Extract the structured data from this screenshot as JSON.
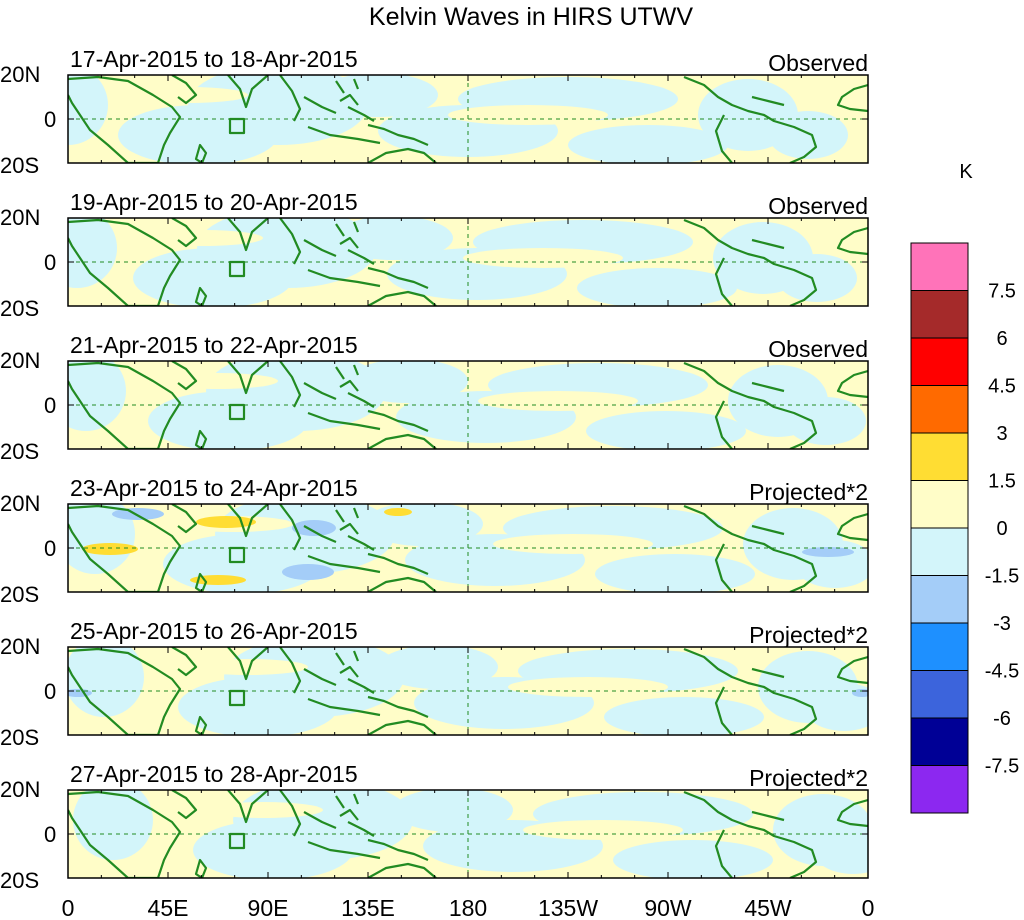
{
  "chart_data": {
    "type": "heatmap",
    "title": "Kelvin Waves in HIRS UTWV",
    "units": "K",
    "x_tick_labels": [
      "0",
      "45E",
      "90E",
      "135E",
      "180",
      "135W",
      "90W",
      "45W",
      "0"
    ],
    "y_tick_labels": [
      "20N",
      "0",
      "20S"
    ],
    "x_range_deg_east": [
      0,
      360
    ],
    "y_range_deg": [
      -20,
      20
    ],
    "reference_lines": [
      "equator",
      "180"
    ],
    "panels": [
      {
        "period": "17-Apr-2015 to 18-Apr-2015",
        "tag": "Observed",
        "pattern_shift": 0
      },
      {
        "period": "19-Apr-2015 to 20-Apr-2015",
        "tag": "Observed",
        "pattern_shift": 15
      },
      {
        "period": "21-Apr-2015 to 22-Apr-2015",
        "tag": "Observed",
        "pattern_shift": 30
      },
      {
        "period": "23-Apr-2015 to 24-Apr-2015",
        "tag": "Projected*2",
        "pattern_shift": 45
      },
      {
        "period": "25-Apr-2015 to 26-Apr-2015",
        "tag": "Projected*2",
        "pattern_shift": 60
      },
      {
        "period": "27-Apr-2015 to 28-Apr-2015",
        "tag": "Projected*2",
        "pattern_shift": 75
      }
    ],
    "colorbar": {
      "units": "K",
      "levels": [
        "7.5",
        "6",
        "4.5",
        "3",
        "1.5",
        "0",
        "-1.5",
        "-3",
        "-4.5",
        "-6",
        "-7.5"
      ],
      "colors": [
        "#ff73b9",
        "#a52a2a",
        "#ff0000",
        "#ff6a00",
        "#ffdd33",
        "#fffdc8",
        "#d3f5fa",
        "#a4cdf8",
        "#1e90ff",
        "#3c64dc",
        "#000096",
        "#8c28f0"
      ]
    }
  }
}
